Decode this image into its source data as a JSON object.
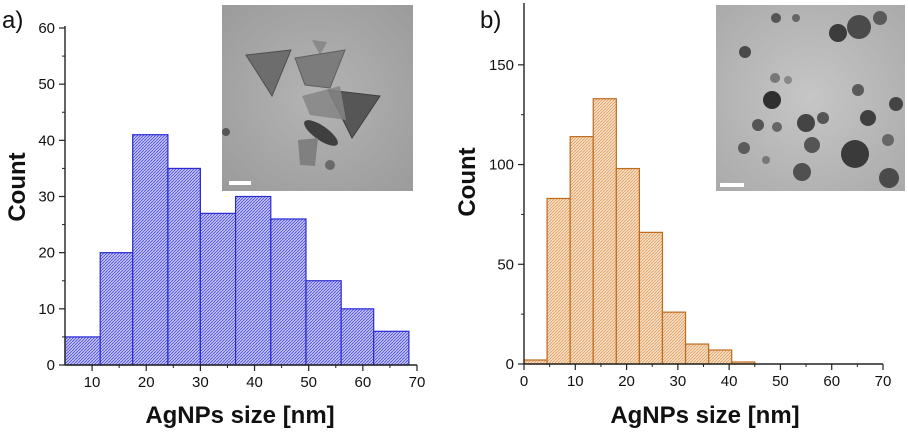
{
  "chart_data": [
    {
      "type": "bar",
      "panel_label": "a)",
      "xlabel": "AgNPs size [nm]",
      "ylabel": "Count",
      "xlim": [
        5,
        70
      ],
      "ylim": [
        0,
        60
      ],
      "x_ticks": [
        10,
        20,
        30,
        40,
        50,
        60,
        70
      ],
      "y_ticks": [
        0,
        10,
        20,
        30,
        40,
        50,
        60
      ],
      "bin_edges": [
        5,
        11.5,
        17.5,
        24,
        30,
        36.5,
        43,
        49.5,
        56,
        62,
        68.5
      ],
      "values": [
        5,
        20,
        41,
        35,
        27,
        30,
        26,
        15,
        10,
        6
      ],
      "colors": {
        "fill": "#c3c4f4",
        "stroke": "#2a2ad6",
        "hatch": "#4848df"
      },
      "inset": {
        "description_icon": "tem-micrograph-inset",
        "scale_bar": true
      }
    },
    {
      "type": "bar",
      "panel_label": "b)",
      "xlabel": "AgNPs size [nm]",
      "ylabel": "Count",
      "xlim": [
        0,
        70
      ],
      "ylim": [
        0,
        180
      ],
      "x_ticks": [
        0,
        10,
        20,
        30,
        40,
        50,
        60,
        70
      ],
      "y_ticks": [
        0,
        50,
        100,
        150
      ],
      "bin_edges": [
        0,
        4.5,
        9,
        13.5,
        18,
        22.5,
        27,
        31.5,
        36,
        40.5,
        45
      ],
      "values": [
        2,
        83,
        114,
        133,
        98,
        66,
        26,
        10,
        7,
        1
      ],
      "colors": {
        "fill": "#f6dcc2",
        "stroke": "#c06a1c",
        "hatch": "#dfa060"
      },
      "inset": {
        "description_icon": "tem-micrograph-inset",
        "scale_bar": true
      }
    }
  ]
}
